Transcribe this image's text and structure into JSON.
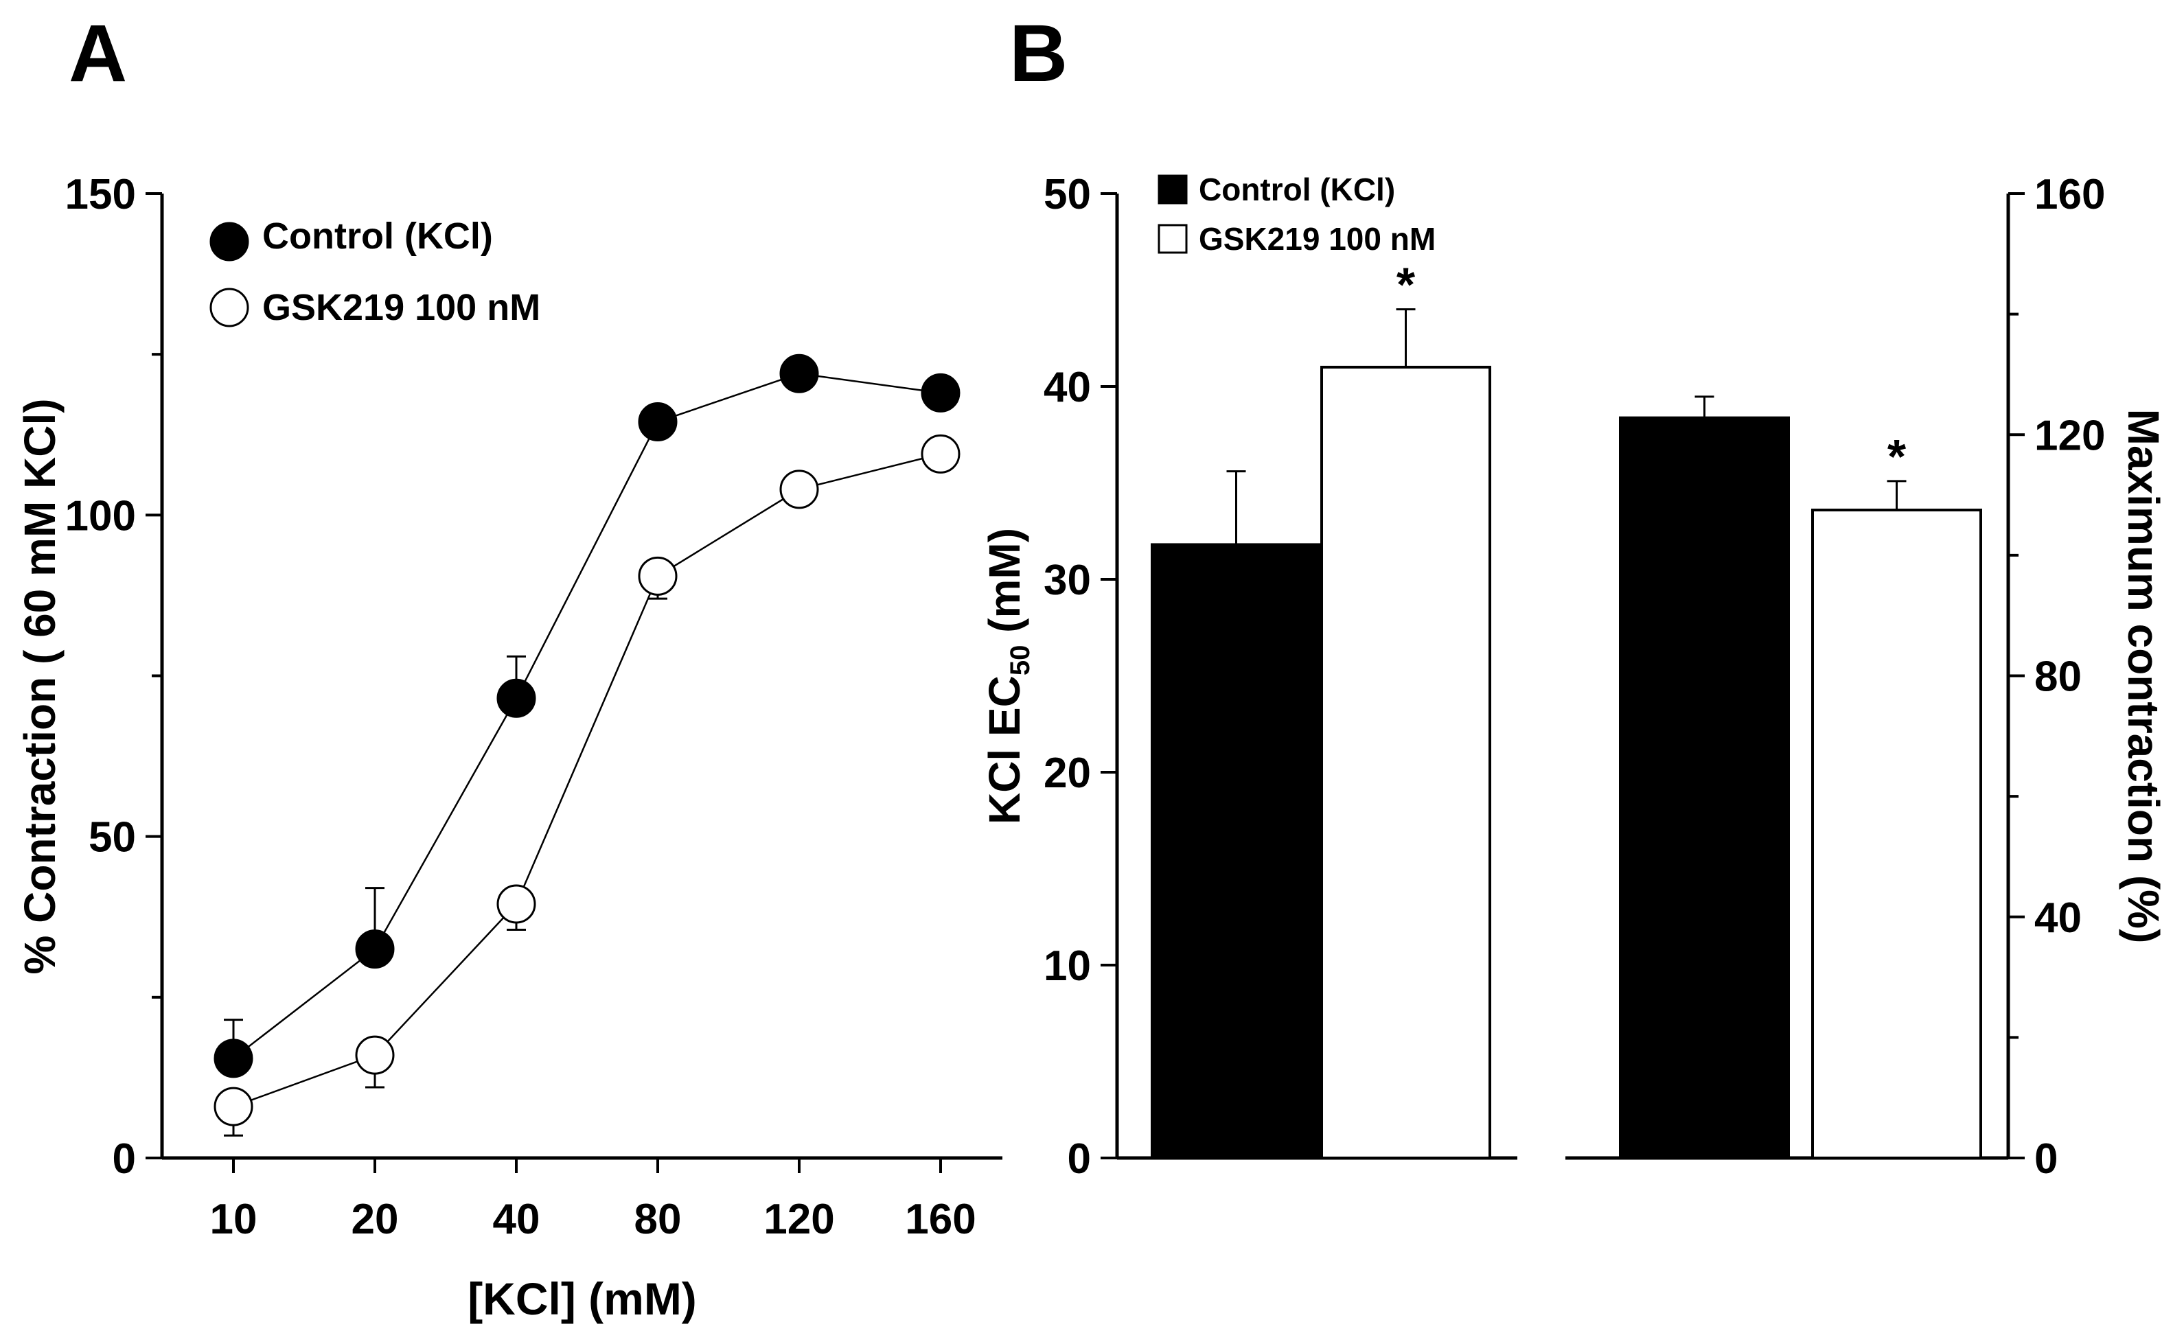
{
  "chart_data": [
    {
      "panel": "A",
      "type": "line",
      "xlabel": "[KCl] (mM)",
      "ylabel": "% Contraction ( 60 mM KCl)",
      "categories": [
        "10",
        "20",
        "40",
        "80",
        "120",
        "160"
      ],
      "ylim": [
        0,
        150
      ],
      "yticks": [
        0,
        50,
        100,
        150
      ],
      "series": [
        {
          "name": "Control (KCl)",
          "marker": "filled-circle",
          "values": [
            15.5,
            32.5,
            71.5,
            114.5,
            122.0,
            119.0
          ],
          "errors": [
            6.0,
            9.5,
            6.5,
            2.5,
            2.0,
            2.0
          ]
        },
        {
          "name": "GSK219 100 nM",
          "marker": "open-circle",
          "values": [
            8.0,
            16.0,
            39.5,
            90.5,
            104.0,
            109.5
          ],
          "errors": [
            4.5,
            5.0,
            4.0,
            3.5,
            2.5,
            2.0
          ]
        }
      ]
    },
    {
      "panel": "B",
      "type": "bar",
      "left_axis": {
        "label_main": "KCl EC",
        "label_sub": "50",
        "label_unit": " (mM)",
        "ylim": [
          0,
          50
        ],
        "yticks": [
          0,
          10,
          20,
          30,
          40,
          50
        ]
      },
      "right_axis": {
        "label": "Maximum contraction (%)",
        "ylim": [
          0,
          160
        ],
        "yticks": [
          0,
          40,
          80,
          120,
          160
        ]
      },
      "legend": [
        "Control (KCl)",
        "GSK219 100 nM"
      ],
      "groups": [
        {
          "measure": "KCl EC50",
          "axis": "left",
          "bars": [
            {
              "series": "Control (KCl)",
              "value": 31.8,
              "error": 3.8,
              "significant": false
            },
            {
              "series": "GSK219 100 nM",
              "value": 41.0,
              "error": 3.0,
              "significant": true
            }
          ]
        },
        {
          "measure": "Maximum contraction",
          "axis": "right",
          "bars": [
            {
              "series": "Control (KCl)",
              "value": 122.8,
              "error": 3.5,
              "significant": false
            },
            {
              "series": "GSK219 100 nM",
              "value": 107.5,
              "error": 4.8,
              "significant": true
            }
          ]
        }
      ],
      "significance_marker": "*"
    }
  ],
  "panels": {
    "a_label": "A",
    "b_label": "B"
  },
  "colors": {
    "control": "#000000",
    "treated": "#ffffff",
    "stroke": "#000000"
  }
}
